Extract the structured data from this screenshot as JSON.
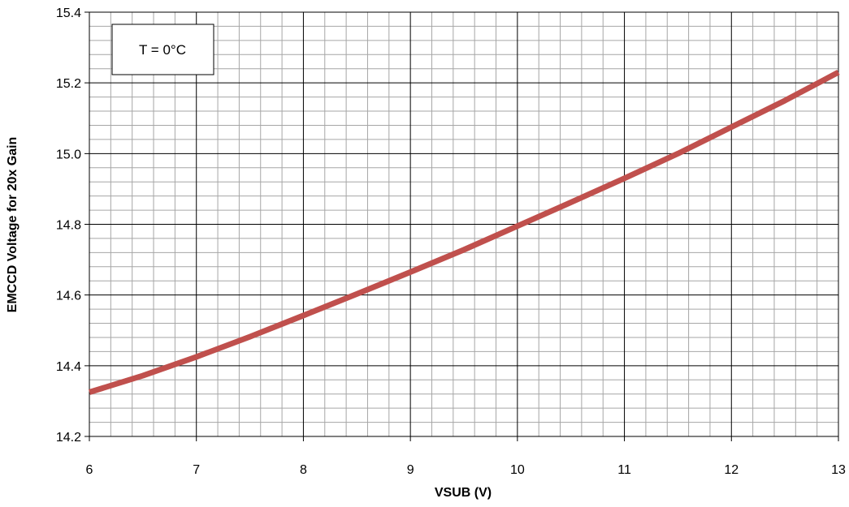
{
  "chart_data": {
    "type": "line",
    "title": "",
    "xlabel": "VSUB (V)",
    "ylabel": "EMCCD Voltage for 20x Gain",
    "xlim": [
      6,
      13
    ],
    "ylim": [
      14.2,
      15.4
    ],
    "x_ticks": [
      6,
      7,
      8,
      9,
      10,
      11,
      12,
      13
    ],
    "x_tick_labels": [
      "6",
      "7",
      "8",
      "9",
      "10",
      "11",
      "12",
      "13"
    ],
    "y_ticks": [
      14.2,
      14.4,
      14.6,
      14.8,
      15.0,
      15.2,
      15.4
    ],
    "y_tick_labels": [
      "14.2",
      "14.4",
      "14.6",
      "14.8",
      "15.0",
      "15.2",
      "15.4"
    ],
    "minor_x_step": 0.2,
    "minor_y_step": 0.04,
    "grid": true,
    "legend": "none",
    "annotation": "T = 0°C",
    "colors": {
      "line": "#c0504d",
      "major_grid": "#000000",
      "minor_grid": "#a6a6a6"
    },
    "series": [
      {
        "x": [
          6,
          6.5,
          7,
          7.5,
          8,
          8.5,
          9,
          9.5,
          10,
          10.5,
          11,
          11.5,
          12,
          12.5,
          13
        ],
        "values": [
          14.325,
          14.372,
          14.425,
          14.482,
          14.542,
          14.603,
          14.665,
          14.728,
          14.795,
          14.862,
          14.93,
          15.0,
          15.075,
          15.15,
          15.23
        ]
      }
    ]
  }
}
